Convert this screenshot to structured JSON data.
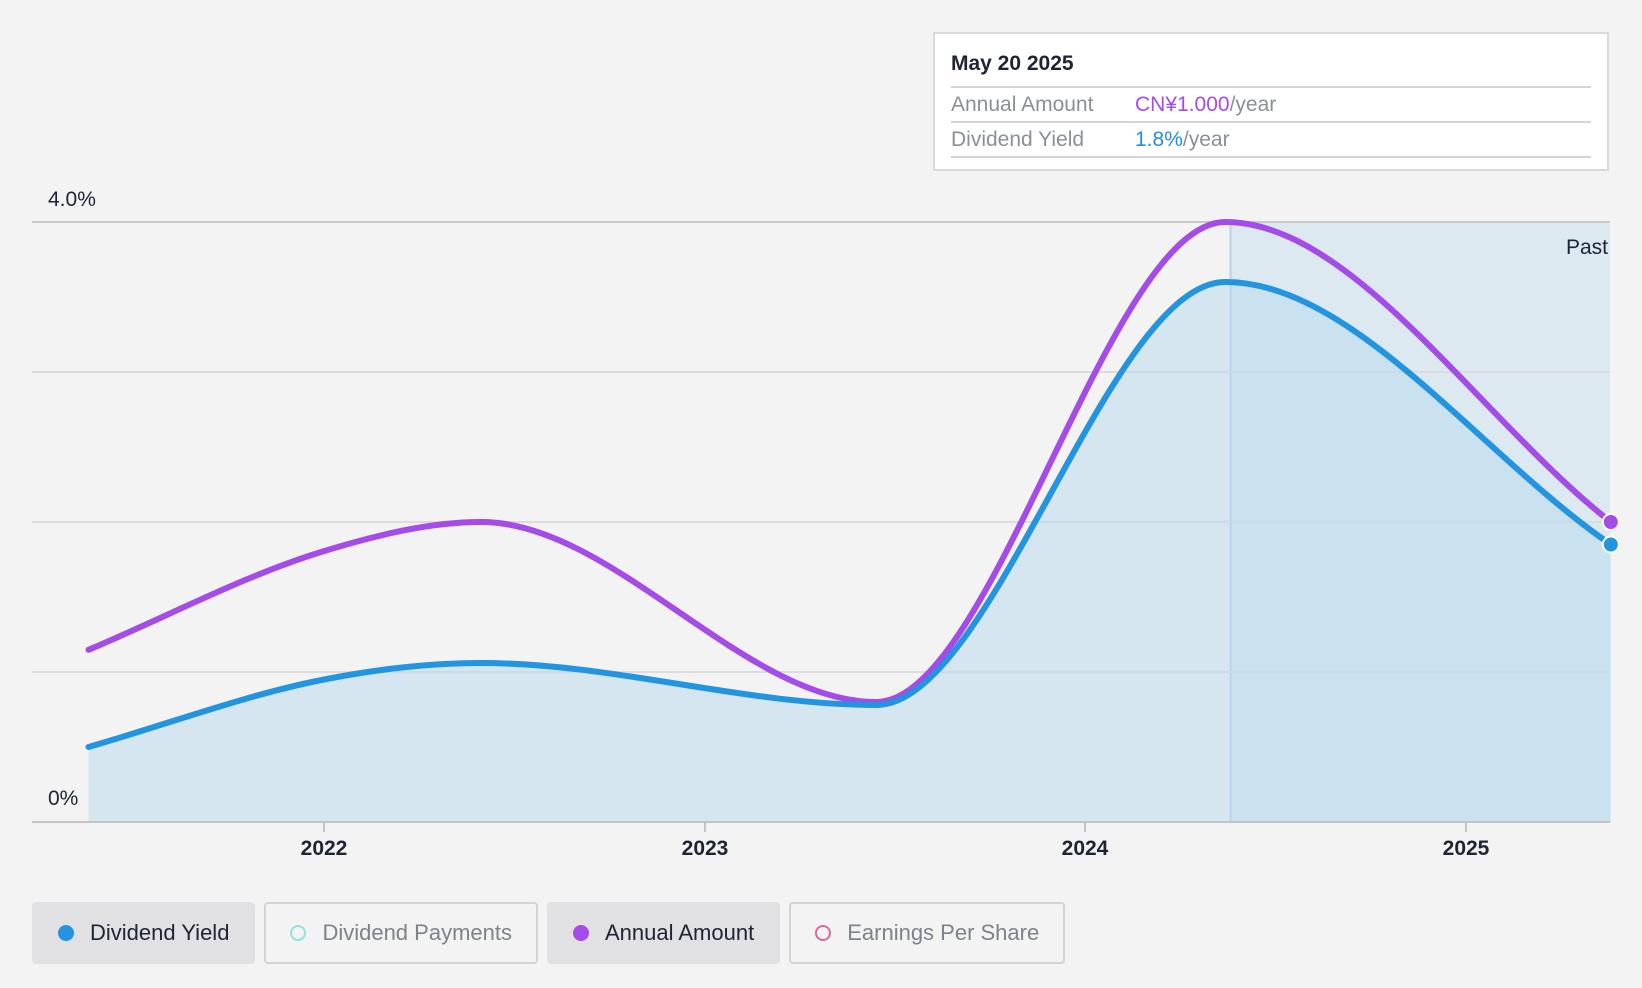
{
  "tooltip": {
    "date": "May 20 2025",
    "rows": [
      {
        "label": "Annual Amount",
        "value": "CN¥1.000",
        "unit": "/year"
      },
      {
        "label": "Dividend Yield",
        "value": "1.8%",
        "unit": "/year"
      }
    ]
  },
  "past_label": "Past",
  "legend": [
    {
      "label": "Dividend Yield",
      "color": "#2394e0",
      "filled": true,
      "active": true
    },
    {
      "label": "Dividend Payments",
      "color": "#8fe3dc",
      "filled": false,
      "active": false
    },
    {
      "label": "Annual Amount",
      "color": "#a44be8",
      "filled": true,
      "active": true
    },
    {
      "label": "Earnings Per Share",
      "color": "#d36b9c",
      "filled": false,
      "active": false
    }
  ],
  "colors": {
    "dividend_yield": "#2394e0",
    "annual_amount": "#a44be8",
    "area_fill": "#b3d6ef",
    "past_region": "#c3ddf0"
  },
  "chart_data": {
    "type": "line",
    "x_tick_labels": [
      "2022",
      "2023",
      "2024",
      "2025"
    ],
    "y_tick_labels": [
      "4.0%",
      "0%"
    ],
    "ylim": [
      0,
      4.0
    ],
    "xlim": [
      "2021-03-15",
      "2025-05-20"
    ],
    "past_region_start": "2024-05-20",
    "grid": true,
    "series": [
      {
        "name": "Dividend Yield",
        "x": [
          "2021-05-20",
          "2022-01-01",
          "2022-06-01",
          "2023-06-15",
          "2024-05-15",
          "2025-05-20"
        ],
        "y": [
          0.5,
          0.95,
          1.06,
          0.78,
          3.6,
          1.85
        ]
      },
      {
        "name": "Annual Amount",
        "unit": "CN¥",
        "x": [
          "2021-05-20",
          "2022-01-01",
          "2022-06-01",
          "2023-06-15",
          "2024-05-15",
          "2025-05-20"
        ],
        "y": [
          0.574,
          0.903,
          1.0,
          0.4,
          2.0,
          1.0
        ]
      }
    ]
  }
}
